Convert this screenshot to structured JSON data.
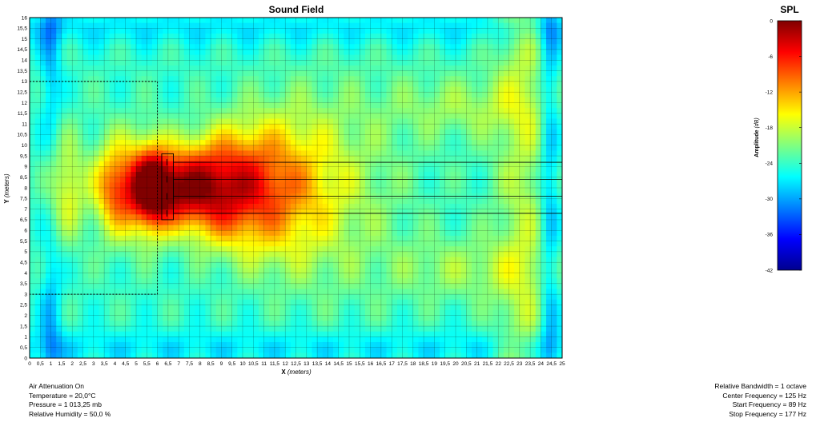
{
  "chart_data": [
    {
      "type": "heatmap",
      "title": "Sound Field",
      "xlabel": "X",
      "xlabel_unit": "(meters)",
      "ylabel": "Y",
      "ylabel_unit": "(meters)",
      "xlim": [
        0,
        25
      ],
      "ylim": [
        0,
        16
      ],
      "x_ticks": [
        "0",
        "0,5",
        "1",
        "1,5",
        "2",
        "2,5",
        "3",
        "3,5",
        "4",
        "4,5",
        "5",
        "5,5",
        "6",
        "6,5",
        "7",
        "7,5",
        "8",
        "8,5",
        "9",
        "9,5",
        "10",
        "10,5",
        "11",
        "11,5",
        "12",
        "12,5",
        "13",
        "13,5",
        "14",
        "14,5",
        "15",
        "15,5",
        "16",
        "16,5",
        "17",
        "17,5",
        "18",
        "18,5",
        "19",
        "19,5",
        "20",
        "20,5",
        "21",
        "21,5",
        "22",
        "22,5",
        "23",
        "23,5",
        "24",
        "24,5",
        "25"
      ],
      "y_ticks": [
        "0",
        "0,5",
        "1",
        "1,5",
        "2",
        "2,5",
        "3",
        "3,5",
        "4",
        "4,5",
        "5",
        "5,5",
        "6",
        "6,5",
        "7",
        "7,5",
        "8",
        "8,5",
        "9",
        "9,5",
        "10",
        "10,5",
        "11",
        "11,5",
        "12",
        "12,5",
        "13",
        "13,5",
        "14",
        "14,5",
        "15",
        "15,5",
        "16"
      ],
      "grid": true,
      "peak_db": 0,
      "peak_location": [
        7.8,
        8.0
      ],
      "dashed_region": {
        "x": [
          0,
          6.0
        ],
        "y": [
          3.0,
          13.0
        ]
      },
      "sources": [
        {
          "x": 6.45,
          "y": 9.2
        },
        {
          "x": 6.45,
          "y": 8.4
        },
        {
          "x": 6.45,
          "y": 7.6
        },
        {
          "x": 6.45,
          "y": 6.8
        }
      ],
      "source_box": {
        "x": [
          6.2,
          6.75
        ],
        "y": [
          6.5,
          9.6
        ]
      },
      "horizontal_lines_y": [
        9.2,
        8.4,
        7.6,
        6.8
      ],
      "color_map": "jet"
    },
    {
      "type": "colorbar",
      "title": "SPL",
      "label": "Amplitude",
      "label_unit": "(dB)",
      "range": [
        -42,
        0
      ],
      "ticks": [
        "0",
        "-6",
        "-12",
        "-18",
        "-24",
        "-30",
        "-36",
        "-42"
      ]
    }
  ],
  "info_left": [
    "Air Attenuation On",
    "Temperature = 20,0°C",
    "Pressure = 1 013,25  mb",
    "Relative Humidity = 50,0 %"
  ],
  "info_right": [
    "Relative Bandwidth = 1 octave",
    "Center Frequency = 125 Hz",
    "Start Frequency = 89 Hz",
    "Stop Frequency = 177 Hz"
  ]
}
